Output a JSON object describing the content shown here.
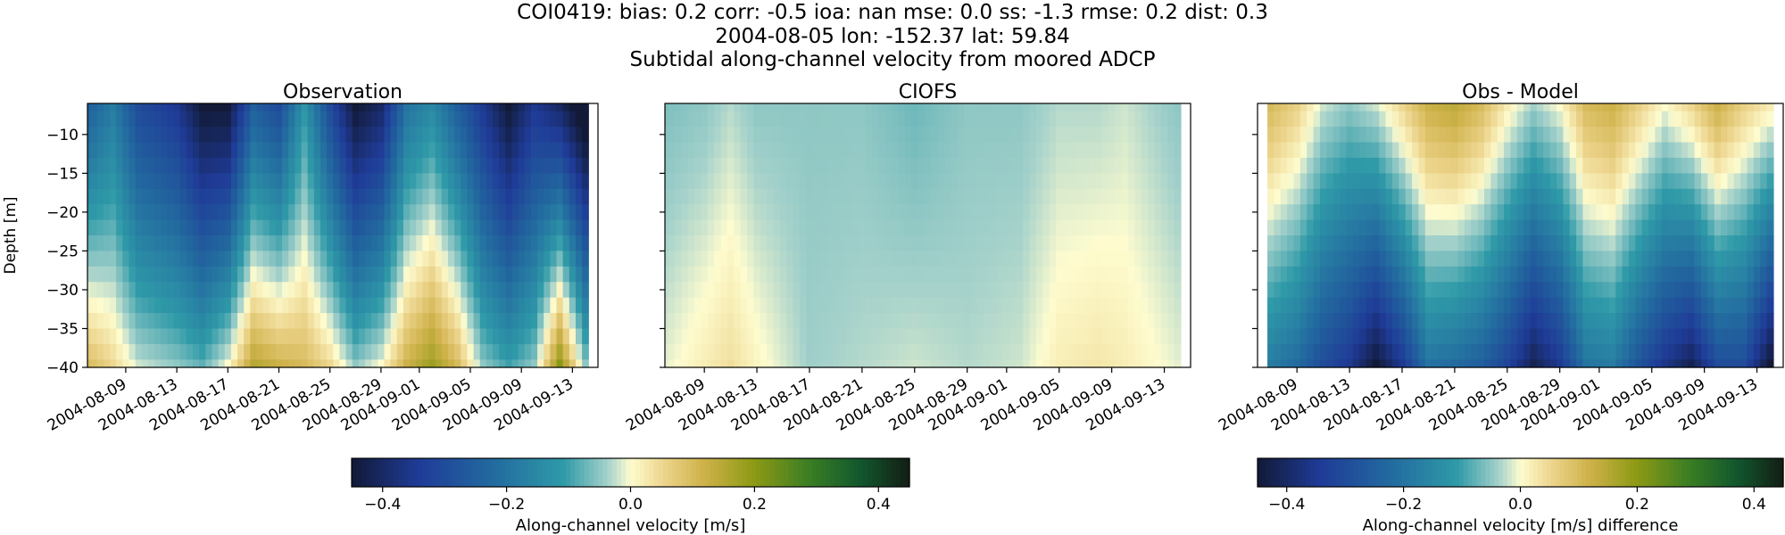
{
  "header": {
    "line1": "COI0419: bias: 0.2  corr: -0.5  ioa: nan  mse: 0.0  ss: -1.3  rmse: 0.2  dist: 0.3",
    "line2": "2004-08-05 lon: -152.37 lat: 59.84",
    "line3": "Subtidal along-channel velocity from moored ADCP"
  },
  "colormap": {
    "name": "delta (cmocean)",
    "stops": [
      [
        0.0,
        "#121a37"
      ],
      [
        0.12,
        "#1f3b97"
      ],
      [
        0.25,
        "#22699f"
      ],
      [
        0.38,
        "#2f9aa8"
      ],
      [
        0.46,
        "#a6d2cb"
      ],
      [
        0.5,
        "#fefccf"
      ],
      [
        0.56,
        "#ecd48c"
      ],
      [
        0.63,
        "#cfb24b"
      ],
      [
        0.72,
        "#8e9a15"
      ],
      [
        0.82,
        "#3b7e23"
      ],
      [
        0.91,
        "#12582e"
      ],
      [
        1.0,
        "#121d14"
      ]
    ]
  },
  "chart_data": [
    {
      "type": "heatmap",
      "title": "Observation",
      "ylabel": "Depth [m]",
      "ylim": [
        -40,
        -6
      ],
      "xlim": [
        "2004-08-06",
        "2004-09-15"
      ],
      "yticks": [
        -10,
        -15,
        -20,
        -25,
        -30,
        -35,
        -40
      ],
      "xticks": [
        "2004-08-09",
        "2004-08-13",
        "2004-08-17",
        "2004-08-21",
        "2004-08-25",
        "2004-08-29",
        "2004-09-01",
        "2004-09-05",
        "2004-09-09",
        "2004-09-13"
      ],
      "clim": [
        -0.45,
        0.45
      ],
      "depths": [
        -6,
        -8,
        -10,
        -12,
        -14,
        -16,
        -18,
        -20,
        -22,
        -24,
        -26,
        -28,
        -30,
        -32,
        -34,
        -36,
        -38,
        -40
      ],
      "field": {
        "date_range": [
          "2004-08-06",
          "2004-09-14"
        ],
        "time_step_hours": 12,
        "components": [
          {
            "date": "2004-08-06",
            "top": -0.25,
            "bottom": 0.1
          },
          {
            "date": "2004-08-08",
            "top": -0.18,
            "bottom": 0.05
          },
          {
            "date": "2004-08-10",
            "top": -0.3,
            "bottom": -0.02
          },
          {
            "date": "2004-08-13",
            "top": -0.35,
            "bottom": -0.05
          },
          {
            "date": "2004-08-15",
            "top": -0.45,
            "bottom": -0.08
          },
          {
            "date": "2004-08-17",
            "top": -0.45,
            "bottom": 0.0
          },
          {
            "date": "2004-08-19",
            "top": -0.25,
            "bottom": 0.15
          },
          {
            "date": "2004-08-21",
            "top": -0.3,
            "bottom": 0.12
          },
          {
            "date": "2004-08-23",
            "top": -0.12,
            "bottom": 0.1
          },
          {
            "date": "2004-08-25",
            "top": -0.3,
            "bottom": 0.05
          },
          {
            "date": "2004-08-27",
            "top": -0.45,
            "bottom": -0.05
          },
          {
            "date": "2004-08-29",
            "top": -0.4,
            "bottom": 0.0
          },
          {
            "date": "2004-08-31",
            "top": -0.2,
            "bottom": 0.12
          },
          {
            "date": "2004-09-02",
            "top": -0.15,
            "bottom": 0.18
          },
          {
            "date": "2004-09-04",
            "top": -0.25,
            "bottom": 0.1
          },
          {
            "date": "2004-09-06",
            "top": -0.35,
            "bottom": -0.05
          },
          {
            "date": "2004-09-08",
            "top": -0.45,
            "bottom": -0.1
          },
          {
            "date": "2004-09-10",
            "top": -0.35,
            "bottom": -0.05
          },
          {
            "date": "2004-09-12",
            "top": -0.4,
            "bottom": 0.2
          },
          {
            "date": "2004-09-14",
            "top": -0.5,
            "bottom": -0.05
          }
        ]
      }
    },
    {
      "type": "heatmap",
      "title": "CIOFS",
      "ylim": [
        -40,
        -6
      ],
      "xlim": [
        "2004-08-06",
        "2004-09-15"
      ],
      "yticks": [
        -10,
        -15,
        -20,
        -25,
        -30,
        -35,
        -40
      ],
      "xticks": [
        "2004-08-09",
        "2004-08-13",
        "2004-08-17",
        "2004-08-21",
        "2004-08-25",
        "2004-08-29",
        "2004-09-01",
        "2004-09-05",
        "2004-09-09",
        "2004-09-13"
      ],
      "clim": [
        -0.45,
        0.45
      ],
      "depths": [
        -6,
        -8,
        -10,
        -12,
        -14,
        -16,
        -18,
        -20,
        -22,
        -24,
        -26,
        -28,
        -30,
        -32,
        -34,
        -36,
        -38,
        -40
      ],
      "field": {
        "date_range": [
          "2004-08-06",
          "2004-09-14"
        ],
        "time_step_hours": 12,
        "components": [
          {
            "date": "2004-08-06",
            "top": -0.06,
            "bottom": -0.01
          },
          {
            "date": "2004-08-09",
            "top": -0.05,
            "bottom": 0.02
          },
          {
            "date": "2004-08-11",
            "top": -0.03,
            "bottom": 0.04
          },
          {
            "date": "2004-08-13",
            "top": -0.05,
            "bottom": 0.01
          },
          {
            "date": "2004-08-17",
            "top": -0.05,
            "bottom": -0.04
          },
          {
            "date": "2004-08-21",
            "top": -0.05,
            "bottom": -0.03
          },
          {
            "date": "2004-08-25",
            "top": -0.07,
            "bottom": -0.02
          },
          {
            "date": "2004-08-29",
            "top": -0.05,
            "bottom": -0.03
          },
          {
            "date": "2004-09-02",
            "top": -0.05,
            "bottom": -0.02
          },
          {
            "date": "2004-09-05",
            "top": -0.03,
            "bottom": 0.02
          },
          {
            "date": "2004-09-08",
            "top": -0.03,
            "bottom": 0.03
          },
          {
            "date": "2004-09-10",
            "top": -0.02,
            "bottom": 0.02
          },
          {
            "date": "2004-09-14",
            "top": -0.05,
            "bottom": -0.01
          }
        ]
      }
    },
    {
      "type": "heatmap",
      "title": "Obs - Model",
      "ylim": [
        -40,
        -6
      ],
      "xlim": [
        "2004-08-06",
        "2004-09-15"
      ],
      "yticks": [
        -10,
        -15,
        -20,
        -25,
        -30,
        -35,
        -40
      ],
      "xticks": [
        "2004-08-09",
        "2004-08-13",
        "2004-08-17",
        "2004-08-21",
        "2004-08-25",
        "2004-08-29",
        "2004-09-01",
        "2004-09-05",
        "2004-09-09",
        "2004-09-13"
      ],
      "clim": [
        -0.45,
        0.45
      ],
      "depths": [
        -6,
        -8,
        -10,
        -12,
        -14,
        -16,
        -18,
        -20,
        -22,
        -24,
        -26,
        -28,
        -30,
        -32,
        -34,
        -36,
        -38,
        -40
      ],
      "field": {
        "date_range": [
          "2004-08-07",
          "2004-09-14"
        ],
        "time_step_hours": 12,
        "components": [
          {
            "date": "2004-08-07",
            "top": 0.1,
            "bottom": -0.18
          },
          {
            "date": "2004-08-09",
            "top": 0.06,
            "bottom": -0.22
          },
          {
            "date": "2004-08-11",
            "top": -0.02,
            "bottom": -0.3
          },
          {
            "date": "2004-08-13",
            "top": -0.05,
            "bottom": -0.35
          },
          {
            "date": "2004-08-15",
            "top": -0.02,
            "bottom": -0.45
          },
          {
            "date": "2004-08-17",
            "top": 0.05,
            "bottom": -0.35
          },
          {
            "date": "2004-08-19",
            "top": 0.12,
            "bottom": -0.2
          },
          {
            "date": "2004-08-21",
            "top": 0.14,
            "bottom": -0.22
          },
          {
            "date": "2004-08-23",
            "top": 0.1,
            "bottom": -0.25
          },
          {
            "date": "2004-08-25",
            "top": 0.02,
            "bottom": -0.32
          },
          {
            "date": "2004-08-27",
            "top": -0.04,
            "bottom": -0.42
          },
          {
            "date": "2004-08-29",
            "top": 0.0,
            "bottom": -0.35
          },
          {
            "date": "2004-08-31",
            "top": 0.1,
            "bottom": -0.2
          },
          {
            "date": "2004-09-02",
            "top": 0.12,
            "bottom": -0.18
          },
          {
            "date": "2004-09-04",
            "top": 0.06,
            "bottom": -0.28
          },
          {
            "date": "2004-09-06",
            "top": 0.0,
            "bottom": -0.36
          },
          {
            "date": "2004-09-08",
            "top": 0.05,
            "bottom": -0.42
          },
          {
            "date": "2004-09-10",
            "top": 0.12,
            "bottom": -0.3
          },
          {
            "date": "2004-09-12",
            "top": 0.06,
            "bottom": -0.3
          },
          {
            "date": "2004-09-14",
            "top": 0.02,
            "bottom": -0.45
          }
        ]
      }
    },
    {
      "type": "colorbar",
      "label": "Along-channel velocity [m/s]",
      "range": [
        -0.45,
        0.45
      ],
      "ticks": [
        -0.4,
        -0.2,
        0.0,
        0.2,
        0.4
      ],
      "tick_labels": [
        "−0.4",
        "−0.2",
        "0.0",
        "0.2",
        "0.4"
      ]
    },
    {
      "type": "colorbar",
      "label": "Along-channel velocity [m/s] difference",
      "range": [
        -0.45,
        0.45
      ],
      "ticks": [
        -0.4,
        -0.2,
        0.0,
        0.2,
        0.4
      ],
      "tick_labels": [
        "−0.4",
        "−0.2",
        "0.0",
        "0.2",
        "0.4"
      ]
    }
  ]
}
